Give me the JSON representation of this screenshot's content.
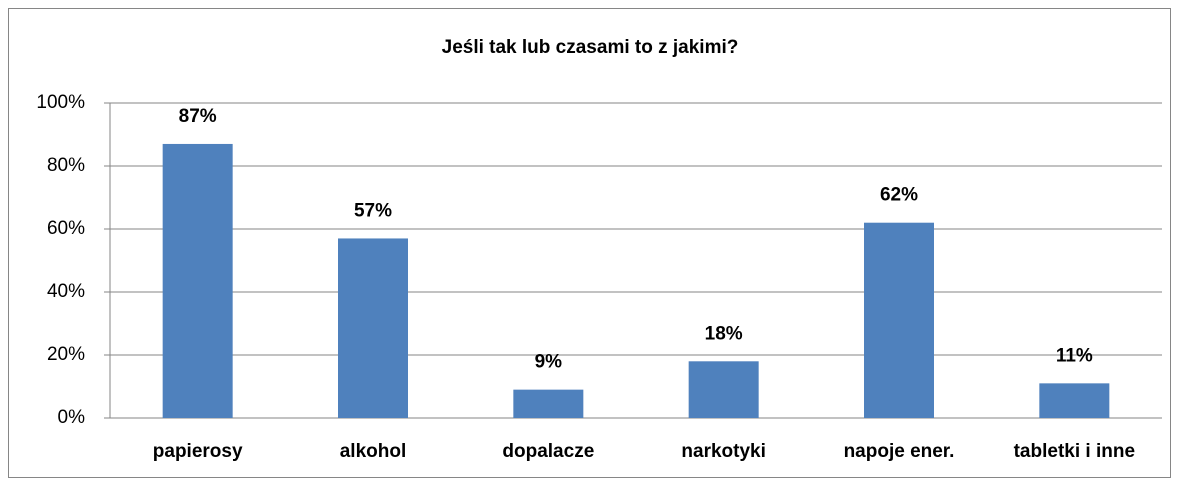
{
  "chart_data": {
    "type": "bar",
    "title": "Jeśli tak lub czasami to z jakimi?",
    "categories": [
      "papierosy",
      "alkohol",
      "dopalacze",
      "narkotyki",
      "napoje ener.",
      "tabletki i inne"
    ],
    "values": [
      87,
      57,
      9,
      18,
      62,
      11
    ],
    "value_labels": [
      "87%",
      "57%",
      "9%",
      "18%",
      "62%",
      "11%"
    ],
    "color": "#4f81bd",
    "ylim": [
      0,
      100
    ],
    "yticks": [
      {
        "value": 0,
        "label": "0%"
      },
      {
        "value": 20,
        "label": "20%"
      },
      {
        "value": 40,
        "label": "40%"
      },
      {
        "value": 60,
        "label": "60%"
      },
      {
        "value": 80,
        "label": "80%"
      },
      {
        "value": 100,
        "label": "100%"
      }
    ],
    "grid": true
  }
}
